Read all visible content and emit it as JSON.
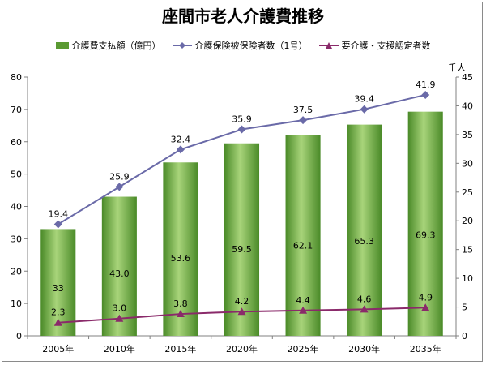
{
  "title": "座間市老人介護費推移",
  "legend": {
    "bar": "介護費支払額（億円）",
    "line1": "介護保険被保険者数（1号）",
    "line2": "要介護・支援認定者数"
  },
  "right_axis_unit": "千人",
  "colors": {
    "bar": "#5a9a32",
    "bar_light": "#a8d47a",
    "line1": "#6a6aa8",
    "line2": "#8a2a6a"
  },
  "chart_data": {
    "type": "bar",
    "categories": [
      "2005年",
      "2010年",
      "2015年",
      "2020年",
      "2025年",
      "2030年",
      "2035年"
    ],
    "series": [
      {
        "name": "介護費支払額（億円）",
        "type": "bar",
        "axis": "left",
        "values": [
          33,
          43.0,
          53.6,
          59.5,
          62.1,
          65.3,
          69.3
        ],
        "labels": [
          "33",
          "43.0",
          "53.6",
          "59.5",
          "62.1",
          "65.3",
          "69.3"
        ]
      },
      {
        "name": "介護保険被保険者数（1号）",
        "type": "line",
        "axis": "right",
        "values": [
          19.4,
          25.9,
          32.4,
          35.9,
          37.5,
          39.4,
          41.9
        ],
        "labels": [
          "19.4",
          "25.9",
          "32.4",
          "35.9",
          "37.5",
          "39.4",
          "41.9"
        ]
      },
      {
        "name": "要介護・支援認定者数",
        "type": "line",
        "axis": "right",
        "values": [
          2.3,
          3.0,
          3.8,
          4.2,
          4.4,
          4.6,
          4.9
        ],
        "labels": [
          "2.3",
          "3.0",
          "3.8",
          "4.2",
          "4.4",
          "4.6",
          "4.9"
        ]
      }
    ],
    "ylim_left": [
      0,
      80
    ],
    "yticks_left": [
      0,
      10,
      20,
      30,
      40,
      50,
      60,
      70,
      80
    ],
    "ylim_right": [
      0,
      45
    ],
    "yticks_right": [
      0,
      5,
      10,
      15,
      20,
      25,
      30,
      35,
      40,
      45
    ],
    "grid": false,
    "legend_position": "top"
  }
}
